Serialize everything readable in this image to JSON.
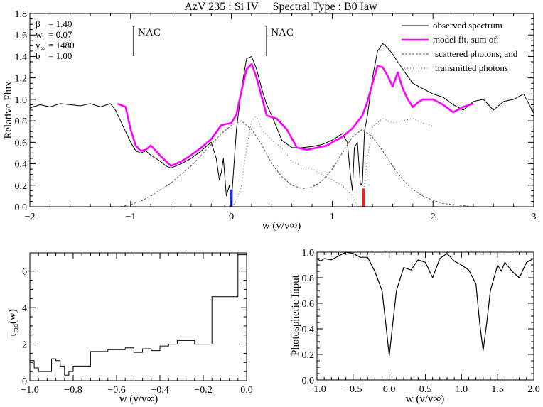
{
  "chart_data": [
    {
      "type": "line",
      "title": "AzV 235 : Si IV     Spectral Type : B0 Iaw",
      "xlabel": "w (v/v∞)",
      "ylabel": "Relative Flux",
      "xlim": [
        -2,
        3
      ],
      "ylim": [
        0,
        1.8
      ],
      "xticks": [
        "−2",
        "−1",
        "0",
        "1",
        "2",
        "3"
      ],
      "xtick_values": [
        -2,
        -1,
        0,
        1,
        2,
        3
      ],
      "yticks": [
        "0.0",
        "0.2",
        "0.4",
        "0.6",
        "0.8",
        "1.0",
        "1.2",
        "1.4",
        "1.6",
        "1.8"
      ],
      "ytick_values": [
        0,
        0.2,
        0.4,
        0.6,
        0.8,
        1.0,
        1.2,
        1.4,
        1.6,
        1.8
      ],
      "parameters": [
        {
          "name": "β",
          "value": "= 1.40"
        },
        {
          "name": "w",
          "sub": "t",
          "value": "= 0.07"
        },
        {
          "name": "v",
          "sub": "∞",
          "value": "= 1480"
        },
        {
          "name": "b",
          "value": "= 1.00"
        }
      ],
      "annotations": [
        {
          "text": "NAC",
          "x": -0.97
        },
        {
          "text": "NAC",
          "x": 0.35
        }
      ],
      "markers": [
        {
          "name": "blue-marker",
          "x": 0.0,
          "y_top": 0.16,
          "color": "#1a33ff"
        },
        {
          "name": "red-marker",
          "x": 1.31,
          "y_top": 0.17,
          "color": "#ff1a1a"
        }
      ],
      "legend": {
        "placement": "top-right",
        "entries": [
          {
            "label": "observed spectrum",
            "style": "solid",
            "color": "#000000"
          },
          {
            "label": "model fit, sum of:",
            "style": "solid-thick",
            "color": "#ff00ff"
          },
          {
            "label": "scattered photons; and",
            "style": "dashed",
            "color": "#555555"
          },
          {
            "label": "transmitted photons",
            "style": "dotted",
            "color": "#555555"
          }
        ]
      },
      "series": [
        {
          "name": "observed spectrum",
          "color": "#000000",
          "x": [
            -2.0,
            -1.9,
            -1.8,
            -1.7,
            -1.6,
            -1.5,
            -1.4,
            -1.3,
            -1.2,
            -1.15,
            -1.1,
            -1.05,
            -1.0,
            -0.95,
            -0.9,
            -0.85,
            -0.8,
            -0.75,
            -0.7,
            -0.65,
            -0.6,
            -0.5,
            -0.4,
            -0.3,
            -0.2,
            -0.15,
            -0.12,
            -0.1,
            -0.08,
            -0.05,
            -0.02,
            0.0,
            0.05,
            0.1,
            0.15,
            0.2,
            0.25,
            0.3,
            0.35,
            0.4,
            0.5,
            0.6,
            0.7,
            0.8,
            0.9,
            1.0,
            1.1,
            1.15,
            1.18,
            1.2,
            1.22,
            1.25,
            1.28,
            1.3,
            1.32,
            1.35,
            1.4,
            1.45,
            1.5,
            1.55,
            1.6,
            1.65,
            1.7,
            1.8,
            1.9,
            2.0,
            2.1,
            2.2,
            2.3,
            2.4,
            2.5,
            2.6,
            2.7,
            2.8,
            2.9,
            3.0
          ],
          "values": [
            0.92,
            0.95,
            0.93,
            0.96,
            0.95,
            0.94,
            0.96,
            0.93,
            0.96,
            0.9,
            0.8,
            0.7,
            0.6,
            0.52,
            0.5,
            0.52,
            0.48,
            0.45,
            0.42,
            0.38,
            0.36,
            0.4,
            0.45,
            0.52,
            0.6,
            0.45,
            0.25,
            0.32,
            0.45,
            0.1,
            0.2,
            0.05,
            0.72,
            1.1,
            1.38,
            1.4,
            1.28,
            1.1,
            0.95,
            0.85,
            0.62,
            0.55,
            0.55,
            0.56,
            0.58,
            0.62,
            0.68,
            0.6,
            0.3,
            0.15,
            0.55,
            0.6,
            0.2,
            0.22,
            0.7,
            0.85,
            1.2,
            1.45,
            1.52,
            1.48,
            1.42,
            1.35,
            1.28,
            1.15,
            1.1,
            1.05,
            1.02,
            0.95,
            0.9,
            0.98,
            1.0,
            0.9,
            0.98,
            1.0,
            1.05,
            0.87
          ]
        },
        {
          "name": "model fit, sum of:",
          "color": "#ff00ff",
          "x": [
            -1.13,
            -1.05,
            -1.0,
            -0.95,
            -0.9,
            -0.85,
            -0.8,
            -0.7,
            -0.6,
            -0.5,
            -0.4,
            -0.3,
            -0.2,
            -0.1,
            0.0,
            0.05,
            0.1,
            0.15,
            0.2,
            0.25,
            0.35,
            0.45,
            0.55,
            0.65,
            0.75,
            0.85,
            0.95,
            1.0,
            1.1,
            1.2,
            1.3,
            1.35,
            1.4,
            1.45,
            1.5,
            1.55,
            1.6,
            1.65,
            1.7,
            1.75,
            1.8,
            1.85,
            1.9,
            2.0,
            2.1,
            2.2,
            2.3,
            2.4
          ],
          "values": [
            0.96,
            0.93,
            0.72,
            0.57,
            0.52,
            0.53,
            0.57,
            0.47,
            0.38,
            0.42,
            0.48,
            0.55,
            0.63,
            0.76,
            0.78,
            0.86,
            1.08,
            1.28,
            1.33,
            1.2,
            0.85,
            0.82,
            0.72,
            0.55,
            0.53,
            0.55,
            0.57,
            0.6,
            0.65,
            0.73,
            0.85,
            0.98,
            1.15,
            1.31,
            1.3,
            1.22,
            1.12,
            1.25,
            1.1,
            1.0,
            0.93,
            0.97,
            1.0,
            1.0,
            0.95,
            0.88,
            0.93,
            0.96
          ]
        },
        {
          "name": "scattered photons",
          "color": "#555555",
          "x": [
            -1.1,
            -1.0,
            -0.9,
            -0.8,
            -0.7,
            -0.6,
            -0.5,
            -0.4,
            -0.3,
            -0.2,
            -0.1,
            0.0,
            0.1,
            0.2,
            0.3,
            0.4,
            0.5,
            0.6,
            0.7,
            0.8,
            0.9,
            1.0,
            1.1,
            1.2,
            1.3,
            1.4,
            1.5,
            1.6,
            1.7,
            1.8,
            1.9,
            2.0,
            2.1,
            2.2,
            2.3,
            2.4
          ],
          "values": [
            0.0,
            0.02,
            0.05,
            0.1,
            0.16,
            0.22,
            0.3,
            0.38,
            0.48,
            0.58,
            0.68,
            0.76,
            0.8,
            0.72,
            0.58,
            0.4,
            0.28,
            0.2,
            0.17,
            0.18,
            0.24,
            0.35,
            0.5,
            0.65,
            0.72,
            0.65,
            0.52,
            0.38,
            0.25,
            0.16,
            0.1,
            0.06,
            0.03,
            0.02,
            0.01,
            0.0
          ]
        },
        {
          "name": "transmitted photons",
          "color": "#555555",
          "x": [
            -0.1,
            -0.05,
            0.0,
            0.05,
            0.1,
            0.15,
            0.2,
            0.25,
            0.3,
            0.4,
            0.5,
            0.6,
            0.7,
            0.8,
            0.9,
            1.0,
            1.1,
            1.2,
            1.25,
            1.3,
            1.35,
            1.4,
            1.5,
            1.6,
            1.7,
            1.8,
            1.9,
            2.0
          ],
          "values": [
            0.0,
            0.02,
            0.0,
            0.05,
            0.2,
            0.55,
            0.8,
            0.85,
            0.72,
            0.62,
            0.55,
            0.42,
            0.38,
            0.35,
            0.3,
            0.25,
            0.2,
            0.1,
            0.0,
            0.02,
            0.45,
            0.75,
            0.82,
            0.78,
            0.8,
            0.82,
            0.78,
            0.75
          ]
        }
      ]
    },
    {
      "type": "line",
      "title": "",
      "xlabel": "w (v/v∞)",
      "ylabel": "τ",
      "ylabel_sub": "rad",
      "ylabel_suffix": "(w)",
      "xlim": [
        -1.0,
        0.0
      ],
      "ylim": [
        0,
        7
      ],
      "xticks": [
        "−1.0",
        "−0.8",
        "−0.6",
        "−0.4",
        "−0.2",
        "0.0"
      ],
      "xtick_values": [
        -1.0,
        -0.8,
        -0.6,
        -0.4,
        -0.2,
        0.0
      ],
      "yticks": [
        "0",
        "2",
        "4",
        "6"
      ],
      "ytick_values": [
        0,
        2,
        4,
        6
      ],
      "series": [
        {
          "name": "tau_rad step",
          "color": "#000000",
          "x": [
            -1.0,
            -0.98,
            -0.96,
            -0.9,
            -0.88,
            -0.86,
            -0.84,
            -0.82,
            -0.8,
            -0.72,
            -0.64,
            -0.56,
            -0.52,
            -0.48,
            -0.44,
            -0.4,
            -0.36,
            -0.32,
            -0.24,
            -0.16,
            -0.04,
            0.0
          ],
          "values": [
            1.1,
            0.7,
            0.5,
            1.2,
            1.1,
            0.8,
            0.3,
            0.5,
            0.8,
            1.6,
            1.7,
            1.8,
            1.55,
            1.75,
            1.65,
            1.9,
            2.0,
            2.2,
            2.0,
            4.6,
            6.9,
            6.9
          ]
        }
      ]
    },
    {
      "type": "line",
      "title": "",
      "xlabel": "w (v/v∞)",
      "ylabel": "Photospheric Input",
      "xlim": [
        -1.0,
        2.0
      ],
      "ylim": [
        0.0,
        1.0
      ],
      "xticks": [
        "−1.0",
        "−0.5",
        "0.0",
        "0.5",
        "1.0",
        "1.5",
        "2.0"
      ],
      "xtick_values": [
        -1.0,
        -0.5,
        0.0,
        0.5,
        1.0,
        1.5,
        2.0
      ],
      "yticks": [
        "0.0",
        "0.2",
        "0.4",
        "0.6",
        "0.8",
        "1.0"
      ],
      "ytick_values": [
        0.0,
        0.2,
        0.4,
        0.6,
        0.8,
        1.0
      ],
      "series": [
        {
          "name": "photospheric input",
          "color": "#000000",
          "x": [
            -1.0,
            -0.95,
            -0.9,
            -0.8,
            -0.7,
            -0.6,
            -0.5,
            -0.4,
            -0.3,
            -0.2,
            -0.1,
            -0.05,
            0.0,
            0.05,
            0.1,
            0.2,
            0.3,
            0.4,
            0.5,
            0.6,
            0.7,
            0.8,
            0.9,
            1.0,
            1.1,
            1.2,
            1.25,
            1.3,
            1.35,
            1.4,
            1.5,
            1.55,
            1.6,
            1.7,
            1.8,
            1.9,
            2.0
          ],
          "values": [
            0.95,
            0.93,
            0.95,
            0.94,
            0.97,
            1.0,
            0.99,
            0.96,
            0.96,
            0.85,
            0.7,
            0.45,
            0.19,
            0.45,
            0.7,
            0.88,
            0.86,
            0.94,
            0.92,
            0.8,
            0.95,
            0.99,
            0.93,
            0.9,
            0.86,
            0.75,
            0.45,
            0.23,
            0.45,
            0.7,
            0.9,
            0.85,
            0.92,
            0.85,
            0.8,
            0.92,
            0.95
          ]
        }
      ]
    }
  ]
}
